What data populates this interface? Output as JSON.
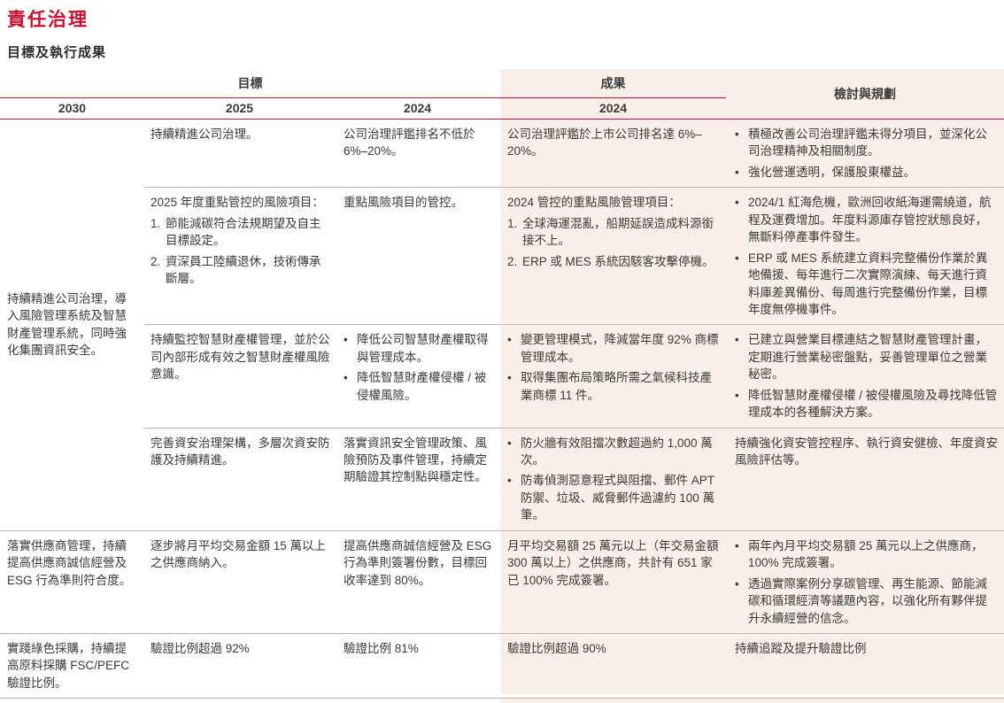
{
  "colors": {
    "accent_red": "#c8102e",
    "band_bg": "#f7efe8",
    "divider": "#bdb6af",
    "text": "#3a3a3a"
  },
  "page": {
    "title": "責任治理",
    "section_title": "目標及執行成果"
  },
  "table": {
    "header": {
      "goal_label": "目標",
      "result_label": "成果",
      "review_label": "檢討與規劃",
      "col_2030": "2030",
      "col_2025": "2025",
      "col_2024_goal": "2024",
      "col_2024_result": "2024"
    },
    "groups": [
      {
        "goal_2030": [
          {
            "type": "text",
            "text": "持續精進公司治理，導入風險管理系統及智慧財產管理系統，同時強化集團資訊安全。"
          }
        ],
        "rows": [
          {
            "goal_2025": [
              {
                "type": "text",
                "text": "持續精進公司治理。"
              }
            ],
            "goal_2024": [
              {
                "type": "text",
                "text": "公司治理評鑑排名不低於 6%–20%。"
              }
            ],
            "result_2024": [
              {
                "type": "text",
                "text": "公司治理評鑑於上市公司排名達 6%–20%。"
              }
            ],
            "review": [
              {
                "type": "bullet",
                "text": "積極改善公司治理評鑑未得分項目，並深化公司治理精神及相關制度。"
              },
              {
                "type": "bullet",
                "text": "強化營運透明，保護股東權益。"
              }
            ]
          },
          {
            "goal_2025": [
              {
                "type": "text",
                "text": "2025 年度重點管控的風險項目："
              },
              {
                "type": "num",
                "num": "1.",
                "text": "節能減碳符合法規期望及自主目標設定。"
              },
              {
                "type": "num",
                "num": "2.",
                "text": "資深員工陸續退休，技術傳承斷層。"
              }
            ],
            "goal_2024": [
              {
                "type": "text",
                "text": "重點風險項目的管控。"
              }
            ],
            "result_2024": [
              {
                "type": "text",
                "text": "2024 管控的重點風險管理項目："
              },
              {
                "type": "num",
                "num": "1.",
                "text": "全球海運混亂，船期延誤造成料源銜接不上。"
              },
              {
                "type": "num",
                "num": "2.",
                "text": "ERP 或 MES 系統因駭客攻擊停機。"
              }
            ],
            "review": [
              {
                "type": "bullet",
                "text": "2024/1 紅海危機，歐洲回收紙海運需繞道，航程及運費增加。年度料源庫存管控狀態良好，無斷料停產事件發生。"
              },
              {
                "type": "bullet",
                "text": "ERP 或 MES 系統建立資料完整備份作業於異地備援、每年進行二次實際演練、每天進行資料庫差異備份、每周進行完整備份作業，目標年度無停機事件。"
              }
            ]
          },
          {
            "goal_2025": [
              {
                "type": "text",
                "text": "持續監控智慧財產權管理，並於公司內部形成有效之智慧財產權風險意識。"
              }
            ],
            "goal_2024": [
              {
                "type": "bullet",
                "text": "降低公司智慧財產權取得與管理成本。"
              },
              {
                "type": "bullet",
                "text": "降低智慧財產權侵權 / 被侵權風險。"
              }
            ],
            "result_2024": [
              {
                "type": "bullet",
                "text": "變更管理模式，降減當年度 92% 商標管理成本。"
              },
              {
                "type": "bullet",
                "text": "取得集團布局策略所需之氣候科技產業商標 11 件。"
              }
            ],
            "review": [
              {
                "type": "bullet",
                "text": "已建立與營業目標連結之智慧財產管理計畫，定期進行營業秘密盤點，妥善管理單位之營業秘密。"
              },
              {
                "type": "bullet",
                "text": "降低智慧財產權侵權 / 被侵權風險及尋找降低管理成本的各種解決方案。"
              }
            ]
          },
          {
            "goal_2025": [
              {
                "type": "text",
                "text": "完善資安治理架構，多層次資安防護及持續精進。"
              }
            ],
            "goal_2024": [
              {
                "type": "text",
                "text": "落實資訊安全管理政策、風險預防及事件管理，持續定期驗證其控制點與穩定性。"
              }
            ],
            "result_2024": [
              {
                "type": "bullet",
                "text": "防火牆有效阻擋次數超過約 1,000 萬次。"
              },
              {
                "type": "bullet",
                "text": "防毒偵測惡意程式與阻擋、郵件 APT 防禦、垃圾、威脅郵件過濾約 100 萬筆。"
              }
            ],
            "review": [
              {
                "type": "text",
                "text": "持續強化資安管控程序、執行資安健檢、年度資安風險評估等。"
              }
            ]
          }
        ]
      },
      {
        "goal_2030": [
          {
            "type": "text",
            "text": "落實供應商管理，持續提高供應商誠信經營及 ESG 行為準則符合度。"
          }
        ],
        "rows": [
          {
            "goal_2025": [
              {
                "type": "text",
                "text": "逐步將月平均交易金額 15 萬以上之供應商納入。"
              }
            ],
            "goal_2024": [
              {
                "type": "text",
                "text": "提高供應商誠信經營及 ESG 行為準則簽署份數，目標回收率達到 80%。"
              }
            ],
            "result_2024": [
              {
                "type": "text",
                "text": "月平均交易額 25 萬元以上（年交易金額 300 萬以上）之供應商，共計有 651 家已 100% 完成簽署。"
              }
            ],
            "review": [
              {
                "type": "bullet",
                "text": "兩年內月平均交易額 25 萬元以上之供應商，100% 完成簽署。"
              },
              {
                "type": "bullet",
                "text": "透過實際案例分享碳管理、再生能源、節能減碳和循環經濟等議題內容，以強化所有夥伴提升永續經營的信念。"
              }
            ]
          }
        ]
      },
      {
        "goal_2030": [
          {
            "type": "text",
            "text": "實踐綠色採購，持續提高原料採購 FSC/PEFC 驗證比例。"
          }
        ],
        "rows": [
          {
            "goal_2025": [
              {
                "type": "text",
                "text": "驗證比例超過 92%"
              }
            ],
            "goal_2024": [
              {
                "type": "text",
                "text": "驗證比例 81%"
              }
            ],
            "result_2024": [
              {
                "type": "text",
                "text": "驗證比例超過 90%"
              }
            ],
            "review": [
              {
                "type": "text",
                "text": "持續追蹤及提升驗證比例"
              }
            ]
          }
        ]
      }
    ]
  }
}
